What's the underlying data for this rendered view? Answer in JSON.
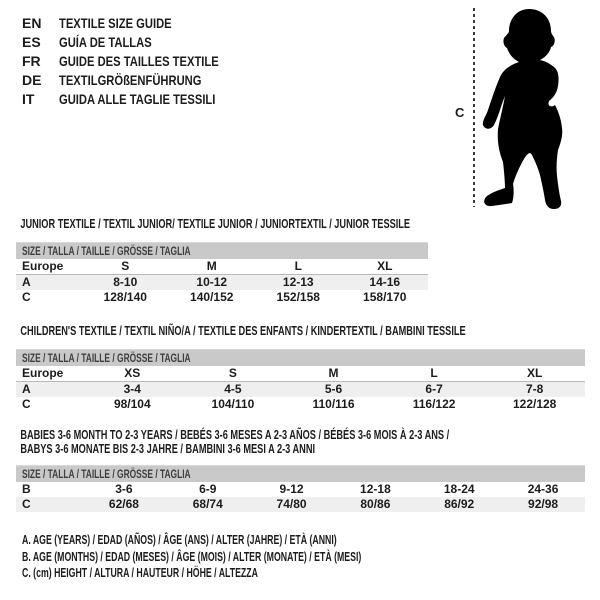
{
  "colors": {
    "size_bar_bg": "#c9c9c9",
    "size_bar_text": "#3e3e3e",
    "row_stripe": "#efefef",
    "text": "#1c1c1c",
    "silhouette": "#000000"
  },
  "languages": [
    {
      "code": "EN",
      "label": "TEXTILE SIZE GUIDE"
    },
    {
      "code": "ES",
      "label": "GUÍA DE TALLAS"
    },
    {
      "code": "FR",
      "label": "GUIDE DES TAILLES TEXTILE"
    },
    {
      "code": "DE",
      "label": "TEXTILGRÖßENFÜHRUNG"
    },
    {
      "code": "IT",
      "label": "GUIDA ALLE TAGLIE TESSILI"
    }
  ],
  "figure": {
    "measure_label": "C",
    "description": "black silhouette of a standing toddler with dashed height line"
  },
  "size_bar_label": "SIZE / TALLA / TAILLE / GRÖSSE / TAGLIA",
  "tables": [
    {
      "title_lines": [
        "JUNIOR TEXTILE / TEXTIL JUNIOR/ TEXTILE JUNIOR / JUNIORTEXTIL / JUNIOR TESSILE"
      ],
      "rows": [
        {
          "label": "Europe",
          "kind": "sizes",
          "cells": [
            "S",
            "M",
            "L",
            "XL"
          ]
        },
        {
          "label": "A",
          "kind": "data",
          "cells": [
            "8-10",
            "10-12",
            "12-13",
            "14-16"
          ]
        },
        {
          "label": "C",
          "kind": "data",
          "cells": [
            "128/140",
            "140/152",
            "152/158",
            "158/170"
          ]
        }
      ]
    },
    {
      "title_lines": [
        "CHILDREN'S TEXTILE / TEXTIL NIÑO/A / TEXTILE DES ENFANTS / KINDERTEXTIL / BAMBINI TESSILE"
      ],
      "rows": [
        {
          "label": "Europe",
          "kind": "sizes",
          "cells": [
            "XS",
            "S",
            "M",
            "L",
            "XL"
          ]
        },
        {
          "label": "A",
          "kind": "data",
          "cells": [
            "3-4",
            "4-5",
            "5-6",
            "6-7",
            "7-8"
          ]
        },
        {
          "label": "C",
          "kind": "data",
          "cells": [
            "98/104",
            "104/110",
            "110/116",
            "116/122",
            "122/128"
          ]
        }
      ]
    },
    {
      "title_lines": [
        "BABIES 3-6 MONTH TO 2-3 YEARS / BEBÉS 3-6 MESES A 2-3 AÑOS / BÉBÉS 3-6 MOIS À 2-3 ANS /",
        "BABYS 3-6 MONATE BIS 2-3 JAHRE / BAMBINI 3-6 MESI A 2-3 ANNI"
      ],
      "rows": [
        {
          "label": "B",
          "kind": "data",
          "cells": [
            "3-6",
            "6-9",
            "9-12",
            "12-18",
            "18-24",
            "24-36"
          ]
        },
        {
          "label": "C",
          "kind": "data",
          "cells": [
            "62/68",
            "68/74",
            "74/80",
            "80/86",
            "86/92",
            "92/98"
          ]
        }
      ]
    }
  ],
  "footnotes": [
    "A. AGE (YEARS) / EDAD (AÑOS) / ÂGE (ANS) / ALTER (JAHRE) / ETÀ (ANNI)",
    "B. AGE (MONTHS) / EDAD (MESES) / ÂGE (MOIS) / ALTER (MONATE) / ETÀ (MESI)",
    "C. (cm) HEIGHT / ALTURA / HAUTEUR / HÖHE / ALTEZZA"
  ]
}
